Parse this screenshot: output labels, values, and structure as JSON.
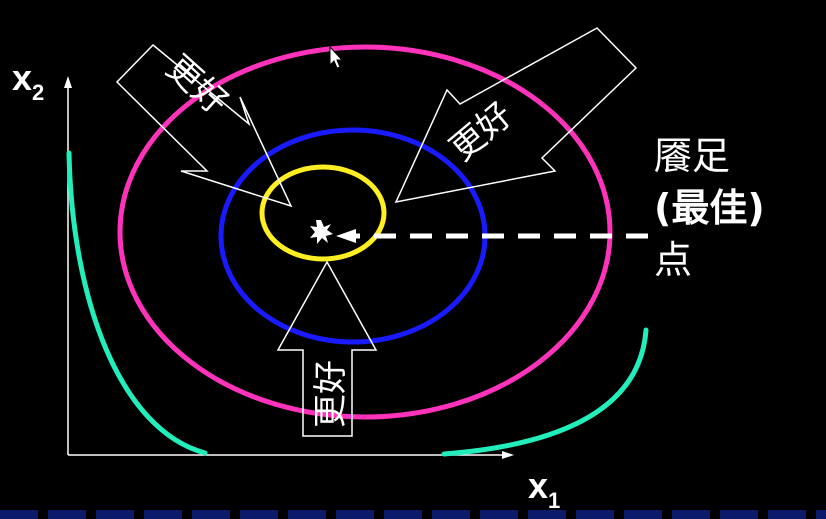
{
  "axes": {
    "x_label": "x",
    "x_sub": "1",
    "y_label": "x",
    "y_sub": "2"
  },
  "arrows": {
    "top_left_text": "更好",
    "top_right_text": "更好",
    "bottom_text": "更好"
  },
  "bliss_point": {
    "line1": "餍足",
    "line2": "(最佳)",
    "line3": "点"
  },
  "colors": {
    "background": "#000000",
    "outer_ellipse": "#ff33bb",
    "middle_ellipse": "#1a1aff",
    "inner_ellipse": "#ffee22",
    "indifference_curves": "#22eebb",
    "axes": "#ffffff",
    "arrow_outline": "#ffffff"
  }
}
